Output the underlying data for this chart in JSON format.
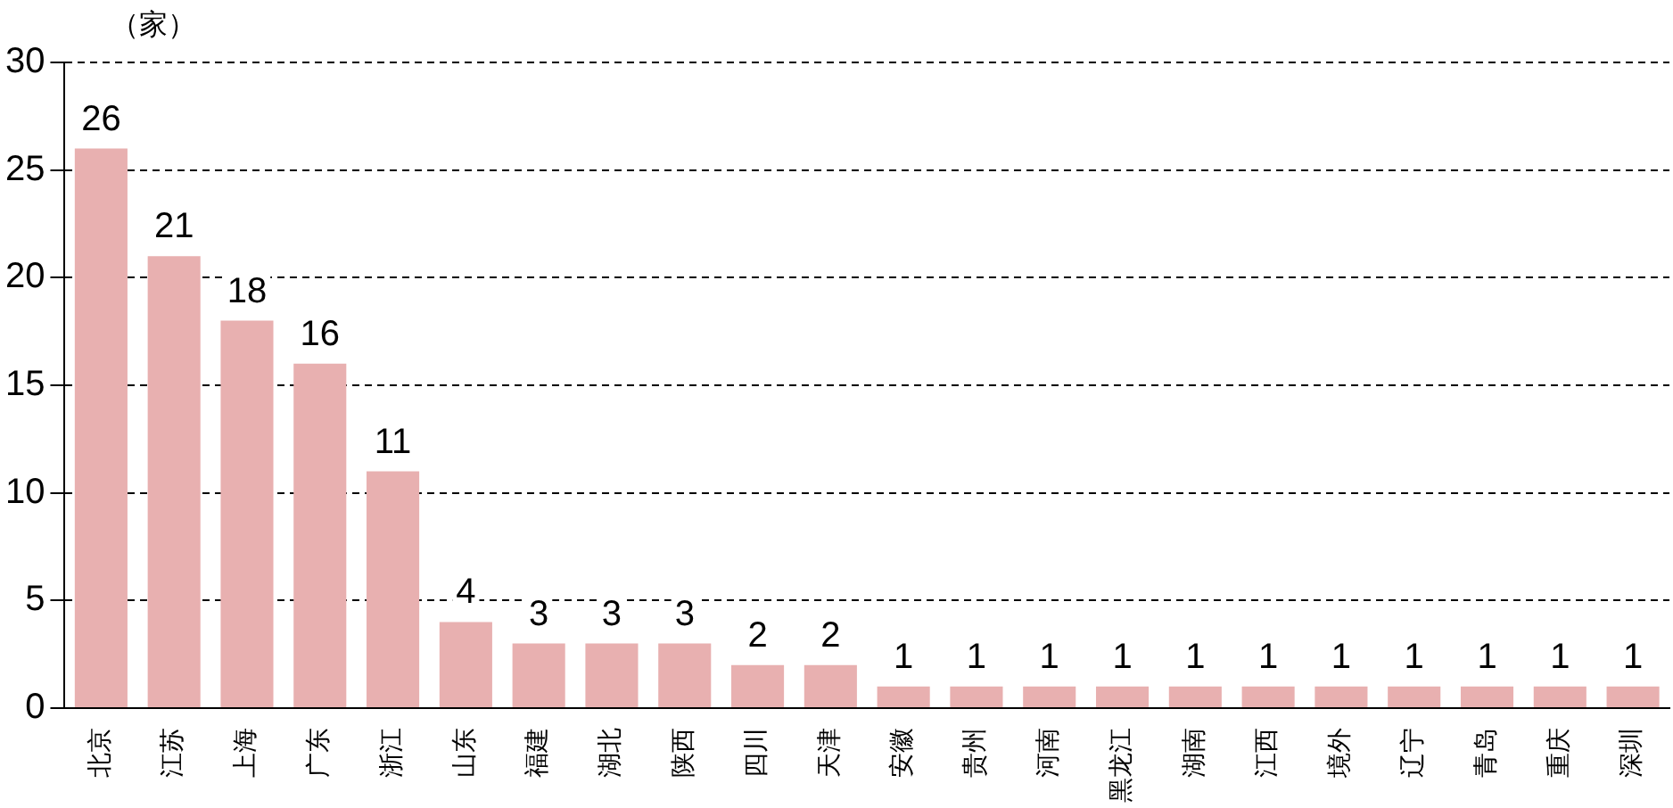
{
  "chart_data": {
    "type": "bar",
    "ylabel": "（家）",
    "categories": [
      "北京",
      "江苏",
      "上海",
      "广东",
      "浙江",
      "山东",
      "福建",
      "湖北",
      "陕西",
      "四川",
      "天津",
      "安徽",
      "贵州",
      "河南",
      "黑龙江",
      "湖南",
      "江西",
      "境外",
      "辽宁",
      "青岛",
      "重庆",
      "深圳"
    ],
    "values": [
      26,
      21,
      18,
      16,
      11,
      4,
      3,
      3,
      3,
      2,
      2,
      1,
      1,
      1,
      1,
      1,
      1,
      1,
      1,
      1,
      1,
      1
    ],
    "color": "#e8b0b0",
    "ylim": [
      0,
      30
    ],
    "yticks": [
      0,
      5,
      10,
      15,
      20,
      25,
      30
    ],
    "grid": "y",
    "line_style": "dashed",
    "data_labels": true,
    "legend": false
  }
}
